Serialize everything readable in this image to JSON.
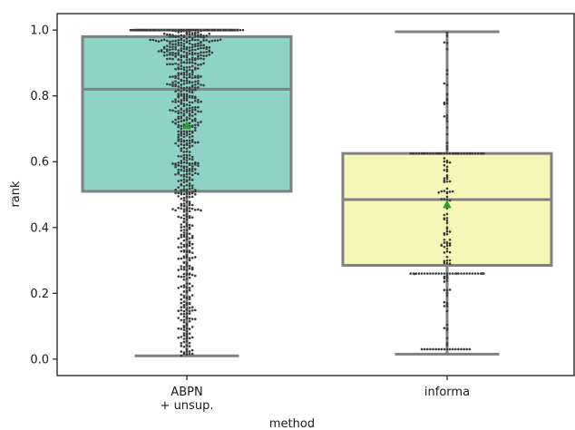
{
  "chart_data": {
    "type": "box",
    "xlabel": "method",
    "ylabel": "rank",
    "ylim": [
      -0.05,
      1.05
    ],
    "yticks": [
      0.0,
      0.2,
      0.4,
      0.6,
      0.8,
      1.0
    ],
    "ytick_labels": [
      "0.0",
      "0.2",
      "0.4",
      "0.6",
      "0.8",
      "1.0"
    ],
    "categories": [
      {
        "label_lines": [
          "ABPN",
          "+ unsup."
        ]
      },
      {
        "label_lines": [
          "informa"
        ]
      }
    ],
    "boxes": [
      {
        "category": "ABPN\n+ unsup.",
        "whisker_low": 0.01,
        "q1": 0.51,
        "median": 0.82,
        "q3": 0.98,
        "whisker_high": 1.0,
        "mean": 0.71,
        "color": "#8ed3c7"
      },
      {
        "category": "informa",
        "whisker_low": 0.015,
        "q1": 0.285,
        "median": 0.485,
        "q3": 0.625,
        "whisker_high": 0.995,
        "mean": 0.47,
        "color": "#f5f7b8"
      }
    ],
    "box_edge_color": "#808080",
    "mean_marker_color": "#2ca02c",
    "point_color": "#3a3a3a",
    "grid": false
  }
}
